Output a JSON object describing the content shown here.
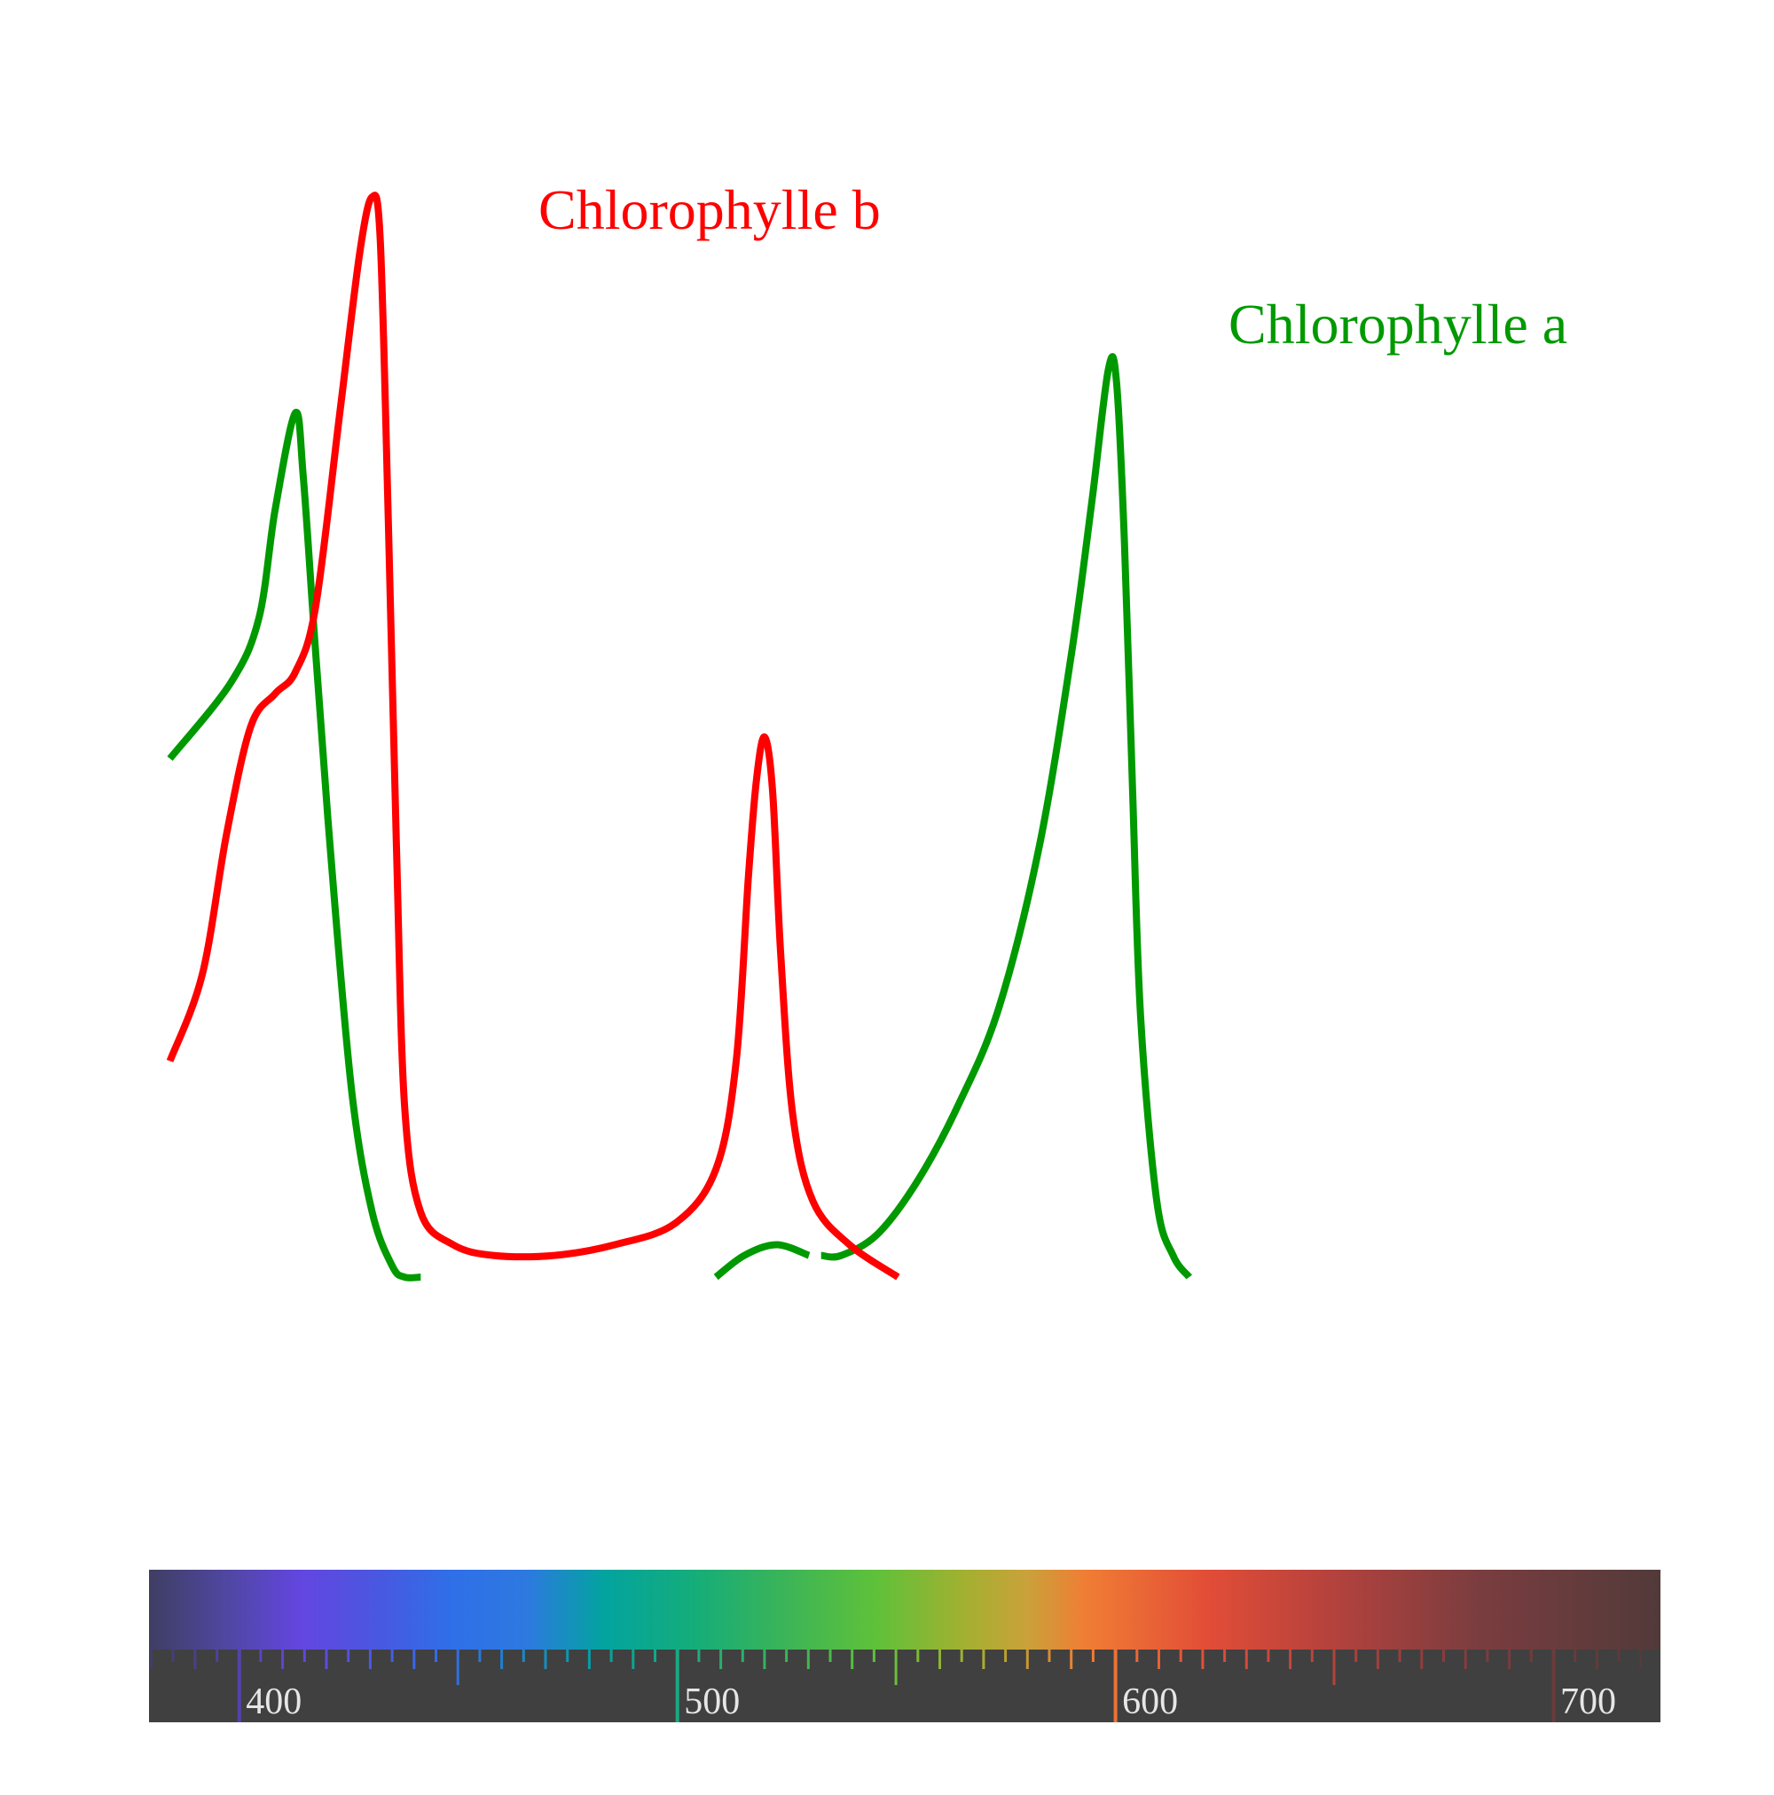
{
  "chart_data": {
    "type": "line",
    "xlabel": "",
    "ylabel": "",
    "xlim": [
      379,
      720
    ],
    "ylim": [
      0,
      1
    ],
    "series": [
      {
        "name": "Chlorophylle a",
        "color": "#009900",
        "segments": [
          [
            [
              380,
              0.48
            ],
            [
              395,
              0.55
            ],
            [
              402,
              0.61
            ],
            [
              406,
              0.71
            ],
            [
              411,
              0.8
            ],
            [
              413,
              0.74
            ],
            [
              416,
              0.58
            ],
            [
              420,
              0.38
            ],
            [
              425,
              0.17
            ],
            [
              430,
              0.06
            ],
            [
              435,
              0.01
            ],
            [
              438,
              0.0
            ],
            [
              442,
              0.0
            ]
          ],
          [
            [
              515,
              0.0
            ],
            [
              522,
              0.02
            ],
            [
              530,
              0.03
            ],
            [
              538,
              0.02
            ]
          ],
          [
            [
              541,
              0.02
            ],
            [
              546,
              0.02
            ],
            [
              555,
              0.04
            ],
            [
              565,
              0.09
            ],
            [
              575,
              0.16
            ],
            [
              585,
              0.25
            ],
            [
              595,
              0.4
            ],
            [
              603,
              0.58
            ],
            [
              608,
              0.72
            ],
            [
              612,
              0.84
            ],
            [
              614,
              0.83
            ],
            [
              616,
              0.68
            ],
            [
              618,
              0.45
            ],
            [
              620,
              0.24
            ],
            [
              624,
              0.07
            ],
            [
              628,
              0.02
            ],
            [
              632,
              0.0
            ]
          ]
        ]
      },
      {
        "name": "Chlorophylle b",
        "color": "#ff0000",
        "segments": [
          [
            [
              380,
              0.2
            ],
            [
              388,
              0.28
            ],
            [
              394,
              0.41
            ],
            [
              400,
              0.51
            ],
            [
              406,
              0.54
            ],
            [
              411,
              0.56
            ],
            [
              416,
              0.62
            ],
            [
              422,
              0.8
            ],
            [
              427,
              0.95
            ],
            [
              430,
              1.0
            ],
            [
              432,
              0.96
            ],
            [
              434,
              0.7
            ],
            [
              436,
              0.4
            ],
            [
              438,
              0.16
            ],
            [
              442,
              0.06
            ],
            [
              450,
              0.03
            ],
            [
              460,
              0.02
            ],
            [
              475,
              0.02
            ],
            [
              490,
              0.03
            ],
            [
              505,
              0.05
            ],
            [
              515,
              0.1
            ],
            [
              520,
              0.2
            ],
            [
              523,
              0.37
            ],
            [
              525,
              0.46
            ],
            [
              527,
              0.5
            ],
            [
              529,
              0.45
            ],
            [
              531,
              0.3
            ],
            [
              534,
              0.15
            ],
            [
              539,
              0.07
            ],
            [
              548,
              0.03
            ],
            [
              560,
              0.0
            ]
          ]
        ]
      }
    ],
    "colorbar": {
      "label_values": [
        400,
        500,
        600,
        700
      ],
      "tick_labels": [
        "400",
        "500",
        "600",
        "700"
      ]
    }
  },
  "labels": {
    "chlorophylle_a": "Chlorophylle a",
    "chlorophylle_b": "Chlorophylle b"
  }
}
